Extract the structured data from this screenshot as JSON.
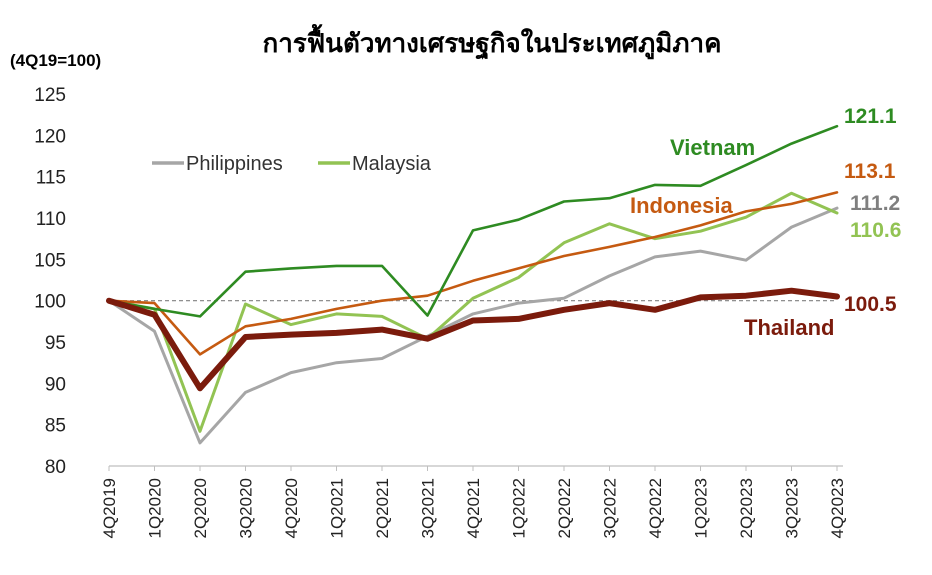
{
  "chart_data": {
    "type": "line",
    "title": "การฟื้นตัวทางเศรษฐกิจในประเทศภูมิภาค",
    "unit_label": "(4Q19=100)",
    "xlabel": "",
    "ylabel": "",
    "ylim": [
      80,
      125
    ],
    "yticks": [
      "80",
      "85",
      "90",
      "95",
      "100",
      "105",
      "110",
      "115",
      "120",
      "125"
    ],
    "categories": [
      "4Q2019",
      "1Q2020",
      "2Q2020",
      "3Q2020",
      "4Q2020",
      "1Q2021",
      "2Q2021",
      "3Q2021",
      "4Q2021",
      "1Q2022",
      "2Q2022",
      "3Q2022",
      "4Q2022",
      "1Q2023",
      "2Q2023",
      "3Q2023",
      "4Q2023"
    ],
    "reference_line": 100,
    "grid": false,
    "legend": {
      "position": "top-left",
      "entries": [
        "Philippines",
        "Malaysia"
      ]
    },
    "series": [
      {
        "name": "Philippines",
        "color": "#a6a6a6",
        "label_color": "#7f7f7f",
        "end_label": "111.2",
        "direct_label": "",
        "values": [
          100,
          96.3,
          82.8,
          88.9,
          91.3,
          92.5,
          93.0,
          95.7,
          98.4,
          99.7,
          100.3,
          103.0,
          105.3,
          106.0,
          104.9,
          108.9,
          111.2
        ]
      },
      {
        "name": "Malaysia",
        "color": "#92c353",
        "label_color": "#92c353",
        "end_label": "110.6",
        "direct_label": "",
        "values": [
          100,
          99.0,
          84.2,
          99.6,
          97.1,
          98.4,
          98.1,
          95.4,
          100.3,
          102.8,
          107.0,
          109.3,
          107.5,
          108.4,
          110.1,
          113.0,
          110.6
        ]
      },
      {
        "name": "Indonesia",
        "color": "#c55a11",
        "label_color": "#c55a11",
        "end_label": "113.1",
        "direct_label": "Indonesia",
        "values": [
          100,
          99.7,
          93.5,
          96.9,
          97.8,
          99.0,
          100.0,
          100.6,
          102.4,
          103.9,
          105.4,
          106.5,
          107.7,
          109.1,
          110.8,
          111.7,
          113.1
        ]
      },
      {
        "name": "Vietnam",
        "color": "#2e8b22",
        "label_color": "#2e8b22",
        "end_label": "121.1",
        "direct_label": "Vietnam",
        "values": [
          100,
          99.0,
          98.1,
          103.5,
          103.9,
          104.2,
          104.2,
          98.2,
          108.5,
          109.8,
          112.0,
          112.4,
          114.0,
          113.9,
          116.4,
          119.0,
          121.1
        ]
      },
      {
        "name": "Thailand",
        "color": "#7b1b0c",
        "label_color": "#7b1b0c",
        "end_label": "100.5",
        "direct_label": "Thailand",
        "values": [
          100,
          98.3,
          89.4,
          95.6,
          95.9,
          96.1,
          96.5,
          95.4,
          97.6,
          97.8,
          98.9,
          99.7,
          98.9,
          100.4,
          100.6,
          101.2,
          100.5
        ]
      }
    ]
  }
}
